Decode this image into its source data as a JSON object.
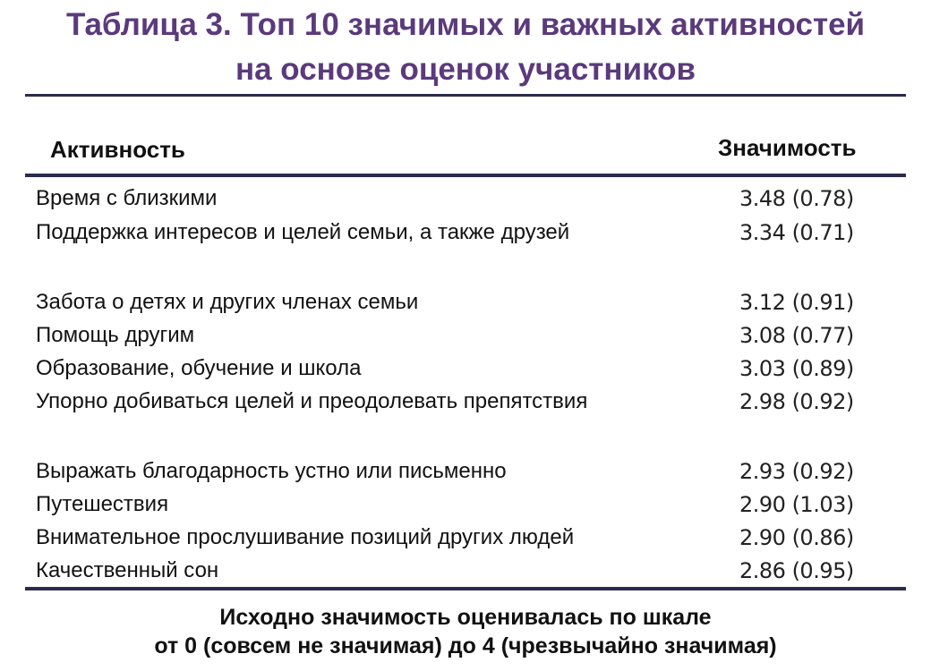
{
  "title": {
    "line1": "Таблица 3. Топ 10 значимых и важных активностей",
    "line2": "на основе оценок участников"
  },
  "colors": {
    "title": "#5b3a7c",
    "rules": "#2b2b4d"
  },
  "table": {
    "headers": {
      "activity": "Активность",
      "importance": "Значимость"
    },
    "rows": [
      {
        "activity": "Время с близкими",
        "value": "3.48 (0.78)"
      },
      {
        "activity": "Поддержка интересов и целей семьи, а также друзей",
        "value": "3.34 (0.71)"
      },
      {
        "activity": "Забота о детях и других членах семьи",
        "value": "3.12 (0.91)"
      },
      {
        "activity": "Помощь другим",
        "value": "3.08 (0.77)"
      },
      {
        "activity": "Образование, обучение и школа",
        "value": "3.03 (0.89)"
      },
      {
        "activity": "Упорно добиваться целей и преодолевать препятствия",
        "value": "2.98 (0.92)"
      },
      {
        "activity": "Выражать благодарность устно или письменно",
        "value": "2.93 (0.92)"
      },
      {
        "activity": "Путешествия",
        "value": "2.90 (1.03)"
      },
      {
        "activity": "Внимательное прослушивание позиций других людей",
        "value": "2.90 (0.86)"
      },
      {
        "activity": "Качественный сон",
        "value": "2.86 (0.95)"
      }
    ]
  },
  "footnote": {
    "line1": "Исходно значимость оценивалась по шкале",
    "line2": "от 0 (совсем не значимая) до 4 (чрезвычайно значимая)"
  }
}
